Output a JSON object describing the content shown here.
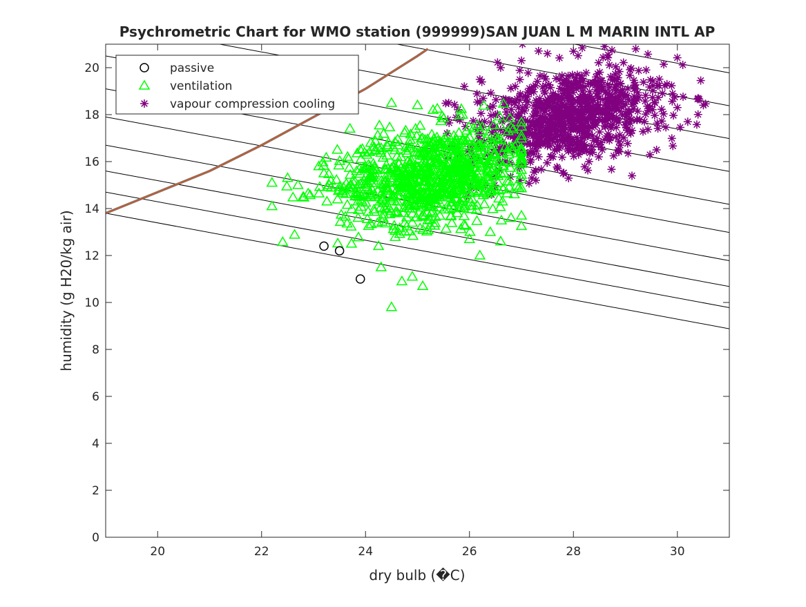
{
  "chart_data": {
    "type": "scatter",
    "title": "Psychrometric Chart for WMO station (999999)SAN JUAN L M MARIN INTL AP",
    "xlabel": "dry bulb (�C)",
    "ylabel": "humidity (g H20/kg air)",
    "xlim": [
      19,
      31
    ],
    "ylim": [
      0,
      21
    ],
    "xticks": [
      "20",
      "22",
      "24",
      "26",
      "28",
      "30"
    ],
    "yticks": [
      "0",
      "2",
      "4",
      "6",
      "8",
      "10",
      "12",
      "14",
      "16",
      "18",
      "20"
    ],
    "grid": false,
    "legend_position": "top-left",
    "saturation_curve": {
      "color": "#D95319",
      "x": [
        19,
        20,
        21,
        22,
        22.5,
        23,
        23.5,
        24,
        24.5,
        25,
        25.2
      ],
      "y": [
        13.8,
        14.7,
        15.6,
        16.7,
        17.3,
        17.9,
        18.5,
        19.1,
        19.8,
        20.5,
        20.8
      ]
    },
    "enthalpy_lines": {
      "slope": -0.41,
      "intercepts_at_x19": [
        13.8,
        14.7,
        15.6,
        16.7,
        17.9,
        19.1,
        20.5,
        21.9,
        23.3,
        24.7,
        26.2
      ]
    },
    "series": [
      {
        "name": "passive",
        "marker": "circle",
        "color": "#000000",
        "x": [
          23.2,
          23.5,
          23.9
        ],
        "y": [
          12.4,
          12.2,
          11.0
        ]
      },
      {
        "name": "ventilation",
        "marker": "triangle",
        "color": "#00FF00",
        "points_count": 900,
        "sample": {
          "x": [
            22.2,
            22.2,
            22.5,
            22.7,
            22.8,
            23.1,
            23.2,
            23.3,
            23.5,
            23.7,
            23.9,
            24.1,
            24.3,
            24.5,
            24.5,
            24.7,
            24.9,
            25.0,
            25.1,
            25.3,
            25.5,
            25.7,
            26.0,
            26.2,
            26.4,
            26.6,
            26.8,
            27.0
          ],
          "y": [
            15.1,
            14.1,
            15.3,
            15.0,
            14.5,
            15.8,
            15.5,
            15.0,
            14.8,
            17.4,
            16.5,
            16.8,
            11.5,
            9.8,
            18.5,
            10.9,
            11.1,
            18.4,
            10.7,
            18.2,
            16.9,
            17.1,
            12.7,
            12.0,
            13.0,
            12.6,
            13.6,
            13.7
          ]
        },
        "bounds": {
          "x": [
            22.2,
            27.0
          ],
          "y_center_at": [
            [
              23.5,
              14.9
            ],
            [
              25.0,
              15.2
            ],
            [
              26.5,
              15.9
            ]
          ]
        }
      },
      {
        "name": "vapour compression cooling",
        "marker": "asterisk",
        "color": "#800080",
        "points_count": 900,
        "sample": {
          "x": [
            25.6,
            25.9,
            26.2,
            26.6,
            27.0,
            27.2,
            27.5,
            27.8,
            28.0,
            28.3,
            28.6,
            28.9,
            29.2,
            29.4,
            29.6,
            29.8,
            30.0,
            30.2,
            30.4,
            30.5
          ],
          "y": [
            18.5,
            19.2,
            19.5,
            20.0,
            20.3,
            15.3,
            20.6,
            15.5,
            20.7,
            16.0,
            20.9,
            16.7,
            20.8,
            19.9,
            16.5,
            19.3,
            18.3,
            17.7,
            18.7,
            18.4
          ]
        },
        "bounds": {
          "x": [
            25.5,
            30.6
          ],
          "y_center_at": [
            [
              26.5,
              17.2
            ],
            [
              28.0,
              18.1
            ],
            [
              29.5,
              18.5
            ]
          ]
        }
      }
    ]
  }
}
